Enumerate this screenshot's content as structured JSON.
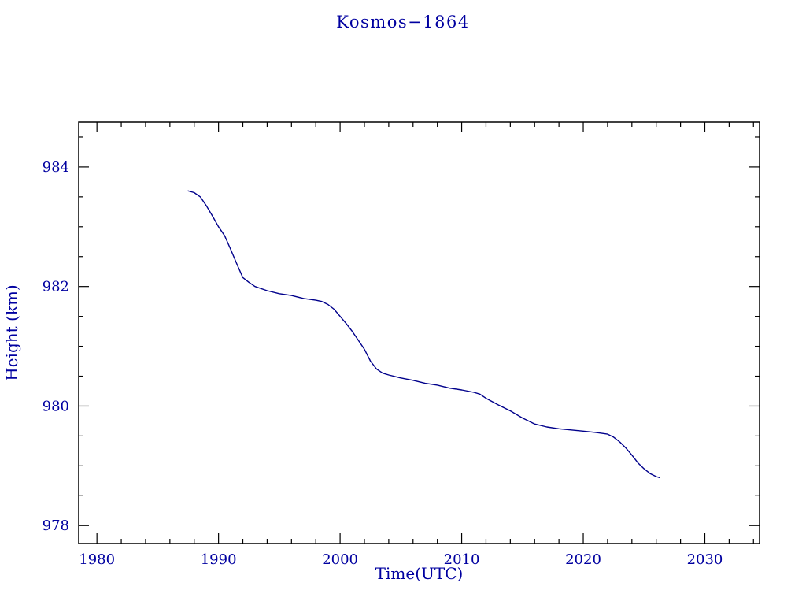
{
  "chart_data": {
    "type": "line",
    "title": "Kosmos−1864",
    "xlabel": "Time(UTC)",
    "ylabel": "Height (km)",
    "xlim": [
      1978.5,
      2034.5
    ],
    "ylim": [
      977.7,
      984.75
    ],
    "x_major_ticks": [
      1980,
      1990,
      2000,
      2010,
      2020,
      2030
    ],
    "x_minor_step": 2,
    "y_major_ticks": [
      978,
      980,
      982,
      984
    ],
    "y_minor_step": 0.5,
    "grid": "off",
    "legend": "none",
    "colors": {
      "text": "#0000A0",
      "axis": "#000000",
      "line": "#00008B",
      "background": "#ffffff"
    },
    "series": [
      {
        "name": "height",
        "x": [
          1987.5,
          1988,
          1988.5,
          1989,
          1989.5,
          1990,
          1990.5,
          1991,
          1991.5,
          1992,
          1992.5,
          1993,
          1994,
          1995,
          1996,
          1997,
          1998,
          1998.5,
          1999,
          1999.5,
          2000,
          2000.5,
          2001,
          2001.5,
          2002,
          2002.5,
          2003,
          2003.5,
          2004,
          2005,
          2006,
          2007,
          2008,
          2009,
          2010,
          2011,
          2011.5,
          2012,
          2013,
          2014,
          2015,
          2015.5,
          2016,
          2017,
          2018,
          2019,
          2020,
          2021,
          2022,
          2022.5,
          2023,
          2023.5,
          2024,
          2024.5,
          2025,
          2025.5,
          2026,
          2026.3
        ],
        "y": [
          983.6,
          983.57,
          983.5,
          983.35,
          983.18,
          983.0,
          982.85,
          982.62,
          982.38,
          982.15,
          982.07,
          982.0,
          981.93,
          981.88,
          981.85,
          981.8,
          981.77,
          981.75,
          981.7,
          981.62,
          981.5,
          981.38,
          981.25,
          981.1,
          980.95,
          980.75,
          980.62,
          980.55,
          980.52,
          980.47,
          980.43,
          980.38,
          980.35,
          980.3,
          980.27,
          980.23,
          980.2,
          980.13,
          980.02,
          979.92,
          979.8,
          979.75,
          979.7,
          979.65,
          979.62,
          979.6,
          979.58,
          979.56,
          979.53,
          979.48,
          979.4,
          979.3,
          979.18,
          979.05,
          978.95,
          978.87,
          978.82,
          978.8
        ]
      }
    ]
  }
}
